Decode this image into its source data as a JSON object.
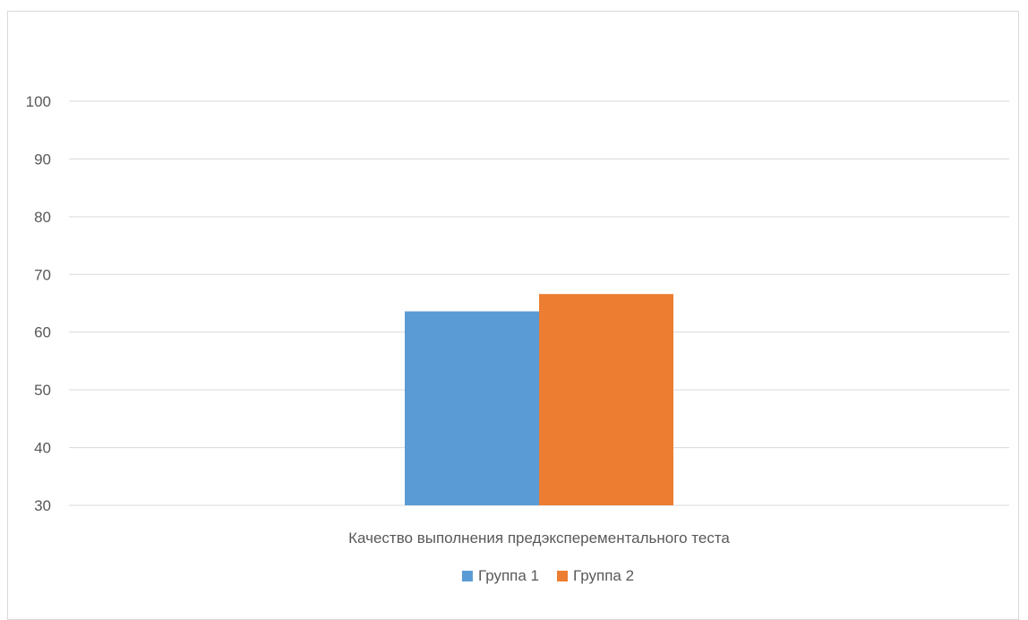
{
  "chart_data": {
    "type": "bar",
    "categories": [
      "Качество выполнения предэксперементального теста"
    ],
    "series": [
      {
        "name": "Группа 1",
        "values": [
          63.6
        ],
        "color": "#5b9bd5"
      },
      {
        "name": "Группа 2",
        "values": [
          66.6
        ],
        "color": "#ed7d31"
      }
    ],
    "ylim": [
      30,
      100
    ],
    "yticks": [
      30,
      40,
      50,
      60,
      70,
      80,
      90,
      100
    ],
    "grid": true,
    "legend_position": "bottom",
    "title": "",
    "xlabel": "",
    "ylabel": ""
  }
}
